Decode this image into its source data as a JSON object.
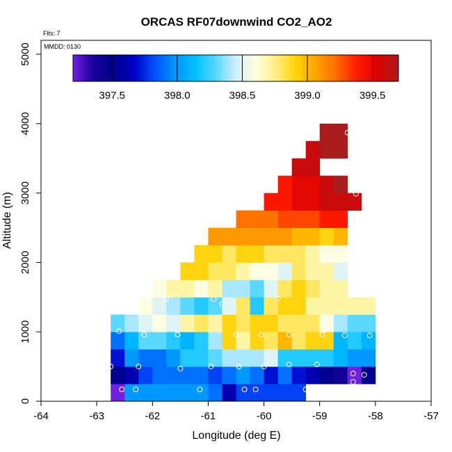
{
  "chart_data": {
    "type": "heatmap",
    "title": "ORCAS RF07downwind CO2_AO2",
    "flights_label": "Flts: 7",
    "date_label": "MMDD: 0130",
    "xlabel": "Longitude (deg E)",
    "ylabel": "Altitude (m)",
    "xlim": [
      -64,
      -57
    ],
    "ylim": [
      0,
      5200
    ],
    "xticks": [
      -64,
      -63,
      -62,
      -61,
      -60,
      -59,
      -58,
      -57
    ],
    "xtick_labels": [
      "-64",
      "-63",
      "-62",
      "-61",
      "-60",
      "-59",
      "-58",
      "-57"
    ],
    "yticks": [
      0,
      1000,
      2000,
      3000,
      4000,
      5000
    ],
    "ytick_labels": [
      "0",
      "1000",
      "2000",
      "3000",
      "4000",
      "5000"
    ],
    "colorbar": {
      "range": [
        397.2,
        399.7
      ],
      "ticks": [
        397.5,
        398.0,
        398.5,
        399.0,
        399.5
      ],
      "tick_labels": [
        "397.5",
        "398.0",
        "398.5",
        "399.0",
        "399.5"
      ],
      "stops": [
        "#7020e0",
        "#1a0099",
        "#00008c",
        "#0000c8",
        "#0050ff",
        "#0095ff",
        "#00bfff",
        "#55d7ff",
        "#cfefff",
        "#ffffe0",
        "#ffee80",
        "#ffd000",
        "#ffa000",
        "#ff6600",
        "#ff1a00",
        "#d80000",
        "#aa1c1c"
      ]
    },
    "grid": {
      "lon_start": -62.75,
      "lon_step": 0.25,
      "alt_step": 250,
      "rows": [
        {
          "alt": 0,
          "lon0": -62.75,
          "values": [
            397.2,
            398.0,
            398.0,
            398.0,
            398.0,
            398.0,
            398.0,
            397.9,
            397.6,
            397.8,
            397.8,
            397.8,
            397.8,
            397.8
          ]
        },
        {
          "alt": 250,
          "lon0": -62.75,
          "values": [
            397.5,
            397.6,
            397.8,
            397.9,
            397.9,
            397.9,
            397.9,
            397.8,
            397.9,
            398.0,
            397.9,
            397.7,
            397.9,
            397.7,
            397.6,
            397.5,
            397.4,
            397.2,
            397.5
          ]
        },
        {
          "alt": 500,
          "lon0": -62.75,
          "values": [
            397.7,
            398.0,
            397.9,
            397.9,
            398.0,
            398.2,
            398.2,
            398.3,
            398.4,
            398.4,
            398.4,
            398.5,
            398.2,
            398.2,
            398.2,
            398.2,
            398.1,
            398.0,
            398.0
          ]
        },
        {
          "alt": 750,
          "lon0": -62.75,
          "values": [
            397.9,
            398.1,
            398.3,
            398.3,
            398.2,
            398.1,
            398.2,
            398.4,
            398.9,
            398.7,
            398.9,
            398.8,
            399.0,
            398.8,
            398.9,
            398.9,
            398.1,
            398.2,
            398.1
          ]
        },
        {
          "alt": 1000,
          "lon0": -62.75,
          "values": [
            398.3,
            398.4,
            398.5,
            398.6,
            398.5,
            398.7,
            398.8,
            398.7,
            398.9,
            398.8,
            398.9,
            398.9,
            398.8,
            398.8,
            398.8,
            398.6,
            398.4,
            398.3,
            398.3
          ]
        },
        {
          "alt": 1250,
          "lon0": -62.25,
          "values": [
            398.6,
            398.5,
            398.4,
            398.3,
            398.2,
            398.3,
            398.5,
            398.8,
            398.2,
            398.8,
            398.9,
            398.9,
            398.7,
            398.7,
            398.7,
            398.7,
            398.7
          ]
        },
        {
          "alt": 1500,
          "lon0": -62.0,
          "values": [
            398.6,
            398.7,
            398.7,
            398.6,
            398.7,
            398.4,
            398.4,
            398.3,
            398.5,
            398.8,
            398.9,
            398.8,
            398.7,
            398.7
          ]
        },
        {
          "alt": 1750,
          "lon0": -61.5,
          "values": [
            398.9,
            398.9,
            398.8,
            398.8,
            398.7,
            398.6,
            398.6,
            398.5,
            398.8,
            398.7,
            398.7,
            398.5
          ]
        },
        {
          "alt": 2000,
          "lon0": -61.25,
          "values": [
            398.9,
            398.9,
            398.8,
            398.9,
            398.9,
            398.8,
            398.8,
            398.8,
            398.7,
            398.6,
            398.6
          ]
        },
        {
          "alt": 2250,
          "lon0": -61.0,
          "values": [
            399.1,
            399.1,
            399.1,
            399.1,
            399.1,
            399.1,
            399.0,
            399.0,
            398.9,
            399.0
          ]
        },
        {
          "alt": 2500,
          "lon0": -60.5,
          "values": [
            399.2,
            399.2,
            399.2,
            399.3,
            399.3,
            399.3,
            399.4,
            399.4
          ]
        },
        {
          "alt": 2750,
          "lon0": -60.0,
          "values": [
            399.4,
            399.4,
            399.5,
            399.5,
            399.6,
            399.6,
            399.6
          ]
        },
        {
          "alt": 3000,
          "lon0": -59.75,
          "values": [
            399.4,
            399.5,
            399.5,
            399.6,
            399.7
          ]
        },
        {
          "alt": 3250,
          "lon0": -59.5,
          "values": [
            399.6,
            399.6
          ]
        },
        {
          "alt": 3500,
          "lon0": -59.25,
          "values": [
            399.6,
            399.7,
            399.7
          ]
        },
        {
          "alt": 3750,
          "lon0": -59.0,
          "values": [
            399.7,
            399.7
          ]
        }
      ]
    },
    "sample_points": [
      [
        -62.55,
        170
      ],
      [
        -62.3,
        170
      ],
      [
        -61.15,
        170
      ],
      [
        -60.35,
        170
      ],
      [
        -60.15,
        170
      ],
      [
        -59.25,
        170
      ],
      [
        -62.75,
        500
      ],
      [
        -62.25,
        500
      ],
      [
        -61.5,
        470
      ],
      [
        -60.95,
        500
      ],
      [
        -60.45,
        500
      ],
      [
        -60.0,
        500
      ],
      [
        -59.55,
        530
      ],
      [
        -59.05,
        530
      ],
      [
        -58.4,
        400
      ],
      [
        -58.2,
        380
      ],
      [
        -58.4,
        280
      ],
      [
        -62.6,
        1010
      ],
      [
        -62.15,
        960
      ],
      [
        -61.55,
        960
      ],
      [
        -60.5,
        960
      ],
      [
        -60.05,
        960
      ],
      [
        -59.55,
        960
      ],
      [
        -58.95,
        960
      ],
      [
        -58.55,
        950
      ],
      [
        -58.1,
        950
      ],
      [
        -62.1,
        1420
      ],
      [
        -61.75,
        1480
      ],
      [
        -60.9,
        1470
      ],
      [
        -60.75,
        1400
      ],
      [
        -59.75,
        1480
      ],
      [
        -58.5,
        3870
      ],
      [
        -58.35,
        2990
      ]
    ]
  }
}
